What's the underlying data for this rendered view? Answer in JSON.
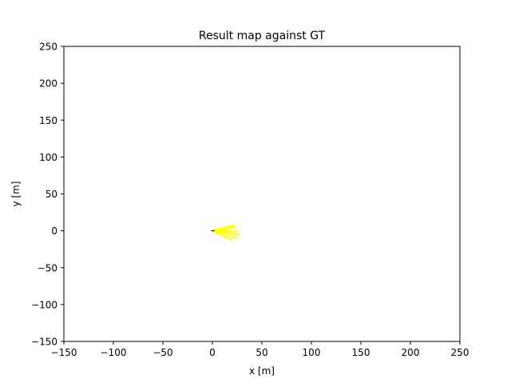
{
  "chart_data": {
    "type": "line",
    "title": "Result map against GT",
    "xlabel": "x [m]",
    "ylabel": "y [m]",
    "xlim": [
      -150,
      250
    ],
    "ylim": [
      -150,
      250
    ],
    "xticks": [
      -150,
      -100,
      -50,
      0,
      50,
      100,
      150,
      200,
      250
    ],
    "yticks": [
      -150,
      -100,
      -50,
      0,
      50,
      100,
      150,
      200,
      250
    ],
    "xtick_labels": [
      "−150",
      "−100",
      "−50",
      "0",
      "50",
      "100",
      "150",
      "200",
      "250"
    ],
    "ytick_labels": [
      "−150",
      "−100",
      "−50",
      "0",
      "50",
      "100",
      "150",
      "200",
      "250"
    ],
    "grid": false,
    "series": [
      {
        "color": "#ffff00",
        "segments": [
          [
            [
              0,
              0
            ],
            [
              23,
              5
            ]
          ],
          [
            [
              0,
              0
            ],
            [
              25,
              0
            ]
          ],
          [
            [
              0,
              0
            ],
            [
              27,
              -5
            ]
          ],
          [
            [
              0,
              0
            ],
            [
              26,
              -10
            ]
          ],
          [
            [
              0,
              0
            ],
            [
              20,
              -13
            ]
          ],
          [
            [
              0,
              0
            ],
            [
              22,
              7
            ]
          ]
        ]
      },
      {
        "color": "#000000",
        "segments": [
          [
            [
              -1,
              0
            ],
            [
              2,
              0
            ]
          ]
        ]
      }
    ]
  }
}
